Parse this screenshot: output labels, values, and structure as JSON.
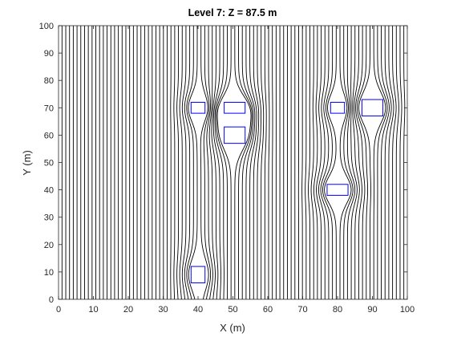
{
  "chart_data": {
    "type": "line",
    "title": "Level 7: Z = 87.5 m",
    "xlabel": "X (m)",
    "ylabel": "Y (m)",
    "xlim": [
      0,
      100
    ],
    "ylim": [
      0,
      100
    ],
    "xticks": [
      "0",
      "10",
      "20",
      "30",
      "40",
      "50",
      "60",
      "70",
      "80",
      "90",
      "100"
    ],
    "yticks": [
      "0",
      "10",
      "20",
      "30",
      "40",
      "50",
      "60",
      "70",
      "80",
      "90",
      "100"
    ],
    "grid": false,
    "box": true,
    "line_color": "#000000",
    "obstacle_color": "#0000ff",
    "streamline_count": 92,
    "streamline_x_range": [
      1,
      99
    ],
    "obstacles": [
      {
        "x": [
          38,
          42
        ],
        "y": [
          68,
          72
        ]
      },
      {
        "x": [
          47.5,
          53.5
        ],
        "y": [
          68,
          72
        ]
      },
      {
        "x": [
          47.5,
          53.5
        ],
        "y": [
          57,
          63
        ]
      },
      {
        "x": [
          78,
          82
        ],
        "y": [
          68,
          72
        ]
      },
      {
        "x": [
          87,
          93
        ],
        "y": [
          67,
          73
        ]
      },
      {
        "x": [
          77,
          83
        ],
        "y": [
          38,
          42
        ]
      },
      {
        "x": [
          38,
          42
        ],
        "y": [
          6,
          12
        ]
      }
    ]
  }
}
